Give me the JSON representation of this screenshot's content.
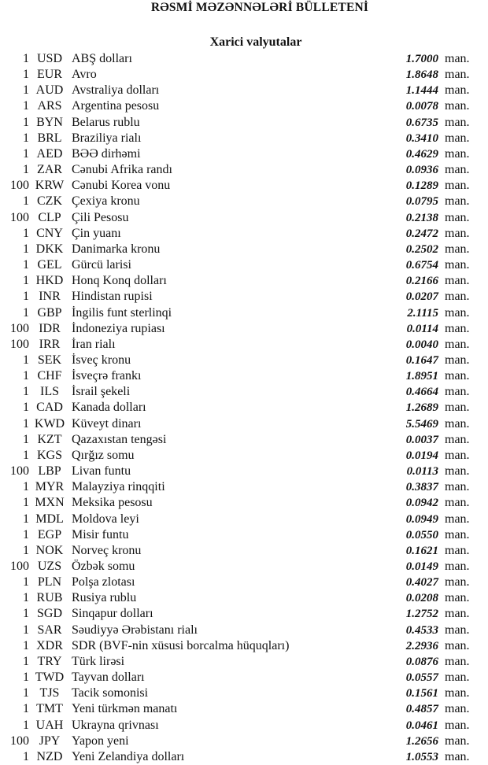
{
  "title": "RƏSMİ MƏZƏNNƏLƏRİ BÜLLETENİ",
  "subtitle": "Xarici valyutalar",
  "unit_label": "man.",
  "currencies": [
    {
      "qty": "1",
      "code": "USD",
      "name": "ABŞ dolları",
      "rate": "1.7000",
      "unit": "man."
    },
    {
      "qty": "1",
      "code": "EUR",
      "name": "Avro",
      "rate": "1.8648",
      "unit": "man."
    },
    {
      "qty": "1",
      "code": "AUD",
      "name": "Avstraliya dolları",
      "rate": "1.1444",
      "unit": "man."
    },
    {
      "qty": "1",
      "code": "ARS",
      "name": "Argentina pesosu",
      "rate": "0.0078",
      "unit": "man."
    },
    {
      "qty": "1",
      "code": "BYN",
      "name": "Belarus rublu",
      "rate": "0.6735",
      "unit": "man."
    },
    {
      "qty": "1",
      "code": "BRL",
      "name": "Braziliya rialı",
      "rate": "0.3410",
      "unit": "man."
    },
    {
      "qty": "1",
      "code": "AED",
      "name": "BƏƏ dirhəmi",
      "rate": "0.4629",
      "unit": "man."
    },
    {
      "qty": "1",
      "code": "ZAR",
      "name": "Cənubi Afrika randı",
      "rate": "0.0936",
      "unit": "man."
    },
    {
      "qty": "100",
      "code": "KRW",
      "name": "Cənubi Korea vonu",
      "rate": "0.1289",
      "unit": "man."
    },
    {
      "qty": "1",
      "code": "CZK",
      "name": "Çexiya kronu",
      "rate": "0.0795",
      "unit": "man."
    },
    {
      "qty": "100",
      "code": "CLP",
      "name": "Çili Pesosu",
      "rate": "0.2138",
      "unit": "man."
    },
    {
      "qty": "1",
      "code": "CNY",
      "name": "Çin yuanı",
      "rate": "0.2472",
      "unit": "man."
    },
    {
      "qty": "1",
      "code": "DKK",
      "name": "Danimarka kronu",
      "rate": "0.2502",
      "unit": "man."
    },
    {
      "qty": "1",
      "code": "GEL",
      "name": "Gürcü larisi",
      "rate": "0.6754",
      "unit": "man."
    },
    {
      "qty": "1",
      "code": "HKD",
      "name": "Honq Konq dolları",
      "rate": "0.2166",
      "unit": "man."
    },
    {
      "qty": "1",
      "code": "INR",
      "name": "Hindistan rupisi",
      "rate": "0.0207",
      "unit": "man."
    },
    {
      "qty": "1",
      "code": "GBP",
      "name": "İngilis funt sterlinqi",
      "rate": "2.1115",
      "unit": "man."
    },
    {
      "qty": "100",
      "code": "IDR",
      "name": "İndoneziya rupiası",
      "rate": "0.0114",
      "unit": "man."
    },
    {
      "qty": "100",
      "code": "IRR",
      "name": "İran rialı",
      "rate": "0.0040",
      "unit": "man."
    },
    {
      "qty": "1",
      "code": "SEK",
      "name": "İsveç kronu",
      "rate": "0.1647",
      "unit": "man."
    },
    {
      "qty": "1",
      "code": "CHF",
      "name": "İsveçrə frankı",
      "rate": "1.8951",
      "unit": "man."
    },
    {
      "qty": "1",
      "code": "ILS",
      "name": "İsrail şekeli",
      "rate": "0.4664",
      "unit": "man."
    },
    {
      "qty": "1",
      "code": "CAD",
      "name": "Kanada dolları",
      "rate": "1.2689",
      "unit": "man."
    },
    {
      "qty": "1",
      "code": "KWD",
      "name": "Küveyt dinarı",
      "rate": "5.5469",
      "unit": "man."
    },
    {
      "qty": "1",
      "code": "KZT",
      "name": "Qazaxıstan tengəsi",
      "rate": "0.0037",
      "unit": "man."
    },
    {
      "qty": "1",
      "code": "KGS",
      "name": "Qırğız somu",
      "rate": "0.0194",
      "unit": "man."
    },
    {
      "qty": "100",
      "code": "LBP",
      "name": "Livan funtu",
      "rate": "0.0113",
      "unit": "man."
    },
    {
      "qty": "1",
      "code": "MYR",
      "name": "Malayziya rinqqiti",
      "rate": "0.3837",
      "unit": "man."
    },
    {
      "qty": "1",
      "code": "MXN",
      "name": "Meksika pesosu",
      "rate": "0.0942",
      "unit": "man."
    },
    {
      "qty": "1",
      "code": "MDL",
      "name": "Moldova leyi",
      "rate": "0.0949",
      "unit": "man."
    },
    {
      "qty": "1",
      "code": "EGP",
      "name": "Misir funtu",
      "rate": "0.0550",
      "unit": "man."
    },
    {
      "qty": "1",
      "code": "NOK",
      "name": "Norveç kronu",
      "rate": "0.1621",
      "unit": "man."
    },
    {
      "qty": "100",
      "code": "UZS",
      "name": "Özbək somu",
      "rate": "0.0149",
      "unit": "man."
    },
    {
      "qty": "1",
      "code": "PLN",
      "name": "Polşa zlotası",
      "rate": "0.4027",
      "unit": "man."
    },
    {
      "qty": "1",
      "code": "RUB",
      "name": "Rusiya rublu",
      "rate": "0.0208",
      "unit": "man."
    },
    {
      "qty": "1",
      "code": "SGD",
      "name": "Sinqapur dolları",
      "rate": "1.2752",
      "unit": "man."
    },
    {
      "qty": "1",
      "code": "SAR",
      "name": "Səudiyyə Ərəbistanı rialı",
      "rate": "0.4533",
      "unit": "man."
    },
    {
      "qty": "1",
      "code": "XDR",
      "name": "SDR (BVF-nin xüsusi borcalma hüquqları)",
      "rate": "2.2936",
      "unit": "man."
    },
    {
      "qty": "1",
      "code": "TRY",
      "name": "Türk lirəsi",
      "rate": "0.0876",
      "unit": "man."
    },
    {
      "qty": "1",
      "code": "TWD",
      "name": "Tayvan dolları",
      "rate": "0.0557",
      "unit": "man."
    },
    {
      "qty": "1",
      "code": "TJS",
      "name": "Tacik somonisi",
      "rate": "0.1561",
      "unit": "man."
    },
    {
      "qty": "1",
      "code": "TMT",
      "name": "Yeni türkmən manatı",
      "rate": "0.4857",
      "unit": "man."
    },
    {
      "qty": "1",
      "code": "UAH",
      "name": "Ukrayna qrivnası",
      "rate": "0.0461",
      "unit": "man."
    },
    {
      "qty": "100",
      "code": "JPY",
      "name": "Yapon yeni",
      "rate": "1.2656",
      "unit": "man."
    },
    {
      "qty": "1",
      "code": "NZD",
      "name": "Yeni Zelandiya dolları",
      "rate": "1.0553",
      "unit": "man."
    }
  ]
}
